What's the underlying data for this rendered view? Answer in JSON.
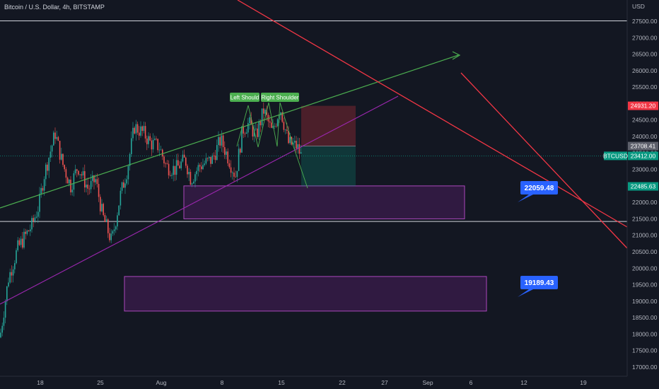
{
  "symbol_title": "Bitcoin / U.S. Dollar, 4h, BITSTAMP",
  "currency_label": "USD",
  "price_axis": {
    "min": 16800,
    "max": 28100,
    "ticks": [
      "27500.00",
      "27000.00",
      "26500.00",
      "26000.00",
      "25500.00",
      "25000.00",
      "24500.00",
      "24000.00",
      "23500.00",
      "23000.00",
      "22500.00",
      "22000.00",
      "21500.00",
      "21000.00",
      "20500.00",
      "20000.00",
      "19500.00",
      "19000.00",
      "18500.00",
      "18000.00",
      "17500.00",
      "17000.00"
    ]
  },
  "time_axis": {
    "labels": [
      "18",
      "25",
      "Aug",
      "8",
      "15",
      "22",
      "27",
      "Sep",
      "6",
      "12",
      "19"
    ]
  },
  "price_tags": [
    {
      "id": "top-resistance",
      "label": "24931.20",
      "value": 24931.2,
      "color": "#f23645"
    },
    {
      "id": "mid",
      "label": "23708.41",
      "value": 23708.41,
      "color": "#5d606b"
    },
    {
      "id": "last",
      "label": "23412.00",
      "value": 23412.0,
      "color": "#089981",
      "symbol": "BTCUSD"
    },
    {
      "id": "support",
      "label": "22485.63",
      "value": 22485.63,
      "color": "#089981"
    }
  ],
  "horizontal_lines": [
    {
      "id": "resistance-line",
      "value": 27510
    },
    {
      "id": "support-line",
      "value": 21420
    }
  ],
  "pattern_labels": {
    "left": "Left Should",
    "right": "Right Shoulder"
  },
  "callouts": [
    {
      "id": "target-1",
      "label": "22059.48",
      "value": 22059.48
    },
    {
      "id": "target-2",
      "label": "19189.43",
      "value": 19189.43
    }
  ],
  "zones": [
    {
      "id": "zone-upper",
      "from": 21500,
      "to": 22500
    },
    {
      "id": "zone-lower",
      "from": 18700,
      "to": 19750
    }
  ],
  "position_tool": {
    "entry": 23708.41,
    "stop": 24931.2,
    "target": 22485.63
  },
  "colors": {
    "background": "#131722",
    "up": "#26a69a",
    "down": "#ef5350",
    "trend_green": "#4caf50",
    "trend_purple": "#9c27b0",
    "trend_red": "#f23645",
    "zone_fill": "#9c27b0",
    "callout": "#2962ff"
  }
}
